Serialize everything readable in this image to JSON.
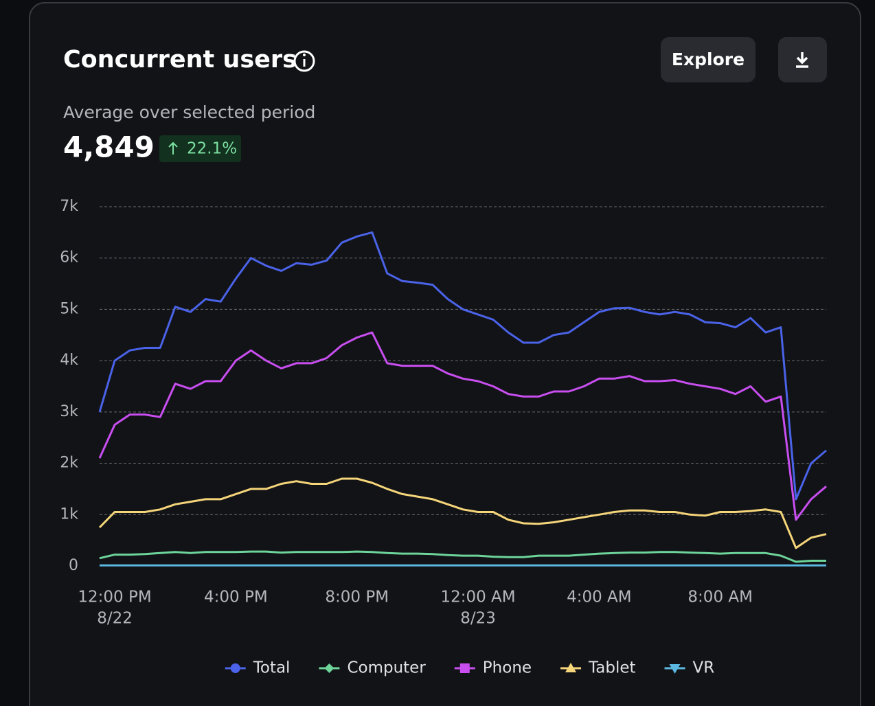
{
  "header": {
    "title": "Concurrent users",
    "button": "Explore",
    "subtitle": "Average over selected period",
    "value": "4,849",
    "change": "22.1%"
  },
  "chart_data": {
    "type": "line",
    "x": [
      "8/22 11:30 AM",
      "8/22 12:00 PM",
      "8/22 12:30 PM",
      "8/22 1:00 PM",
      "8/22 1:30 PM",
      "8/22 2:00 PM",
      "8/22 2:30 PM",
      "8/22 3:00 PM",
      "8/22 3:30 PM",
      "8/22 4:00 PM",
      "8/22 4:30 PM",
      "8/22 5:00 PM",
      "8/22 5:30 PM",
      "8/22 6:00 PM",
      "8/22 6:30 PM",
      "8/22 7:00 PM",
      "8/22 7:30 PM",
      "8/22 8:00 PM",
      "8/22 8:30 PM",
      "8/22 9:00 PM",
      "8/22 9:30 PM",
      "8/22 10:00 PM",
      "8/22 10:30 PM",
      "8/22 11:00 PM",
      "8/22 11:30 PM",
      "8/23 12:00 AM",
      "8/23 12:30 AM",
      "8/23 1:00 AM",
      "8/23 1:30 AM",
      "8/23 2:00 AM",
      "8/23 2:30 AM",
      "8/23 3:00 AM",
      "8/23 3:30 AM",
      "8/23 4:00 AM",
      "8/23 4:30 AM",
      "8/23 5:00 AM",
      "8/23 5:30 AM",
      "8/23 6:00 AM",
      "8/23 6:30 AM",
      "8/23 7:00 AM",
      "8/23 7:30 AM",
      "8/23 8:00 AM",
      "8/23 8:30 AM",
      "8/23 9:00 AM",
      "8/23 9:30 AM",
      "8/23 10:00 AM",
      "8/23 10:30 AM",
      "8/23 11:00 AM",
      "8/23 11:30 AM"
    ],
    "series": [
      {
        "name": "Total",
        "color": "#4a63e8",
        "marker": "circle",
        "values": [
          3000,
          4000,
          4200,
          4250,
          4250,
          5050,
          4950,
          5200,
          5150,
          5600,
          6000,
          5850,
          5750,
          5900,
          5870,
          5950,
          6300,
          6420,
          6500,
          5700,
          5550,
          5520,
          5480,
          5200,
          5000,
          4900,
          4800,
          4550,
          4350,
          4350,
          4500,
          4550,
          4750,
          4950,
          5020,
          5030,
          4950,
          4900,
          4950,
          4900,
          4750,
          4730,
          4650,
          4830,
          4550,
          4650,
          1300,
          2000,
          2250
        ]
      },
      {
        "name": "Computer",
        "color": "#6dd49a",
        "marker": "diamond",
        "values": [
          150,
          220,
          220,
          230,
          250,
          270,
          250,
          270,
          270,
          270,
          280,
          280,
          260,
          270,
          270,
          270,
          270,
          280,
          270,
          250,
          240,
          240,
          230,
          210,
          200,
          200,
          180,
          170,
          170,
          200,
          200,
          200,
          220,
          240,
          250,
          260,
          260,
          270,
          270,
          260,
          250,
          240,
          250,
          250,
          250,
          200,
          80,
          100,
          100
        ]
      },
      {
        "name": "Phone",
        "color": "#c84ef0",
        "marker": "square",
        "values": [
          2100,
          2750,
          2950,
          2950,
          2900,
          3550,
          3450,
          3600,
          3600,
          4000,
          4200,
          4000,
          3850,
          3950,
          3950,
          4050,
          4300,
          4450,
          4550,
          3950,
          3900,
          3900,
          3900,
          3750,
          3650,
          3600,
          3500,
          3350,
          3300,
          3300,
          3400,
          3400,
          3500,
          3650,
          3650,
          3700,
          3600,
          3600,
          3620,
          3550,
          3500,
          3450,
          3350,
          3500,
          3200,
          3300,
          900,
          1300,
          1550
        ]
      },
      {
        "name": "Tablet",
        "color": "#f5d57a",
        "marker": "triangle",
        "values": [
          750,
          1050,
          1050,
          1050,
          1100,
          1200,
          1250,
          1300,
          1300,
          1400,
          1500,
          1500,
          1600,
          1650,
          1600,
          1600,
          1700,
          1700,
          1620,
          1500,
          1400,
          1350,
          1300,
          1200,
          1100,
          1050,
          1050,
          900,
          830,
          820,
          850,
          900,
          950,
          1000,
          1050,
          1080,
          1080,
          1050,
          1050,
          1000,
          980,
          1050,
          1050,
          1070,
          1100,
          1050,
          350,
          550,
          620
        ]
      },
      {
        "name": "VR",
        "color": "#5bb8e0",
        "marker": "triangle-down",
        "values": [
          10,
          10,
          10,
          10,
          10,
          10,
          10,
          10,
          10,
          10,
          10,
          10,
          10,
          10,
          10,
          10,
          10,
          10,
          10,
          10,
          10,
          10,
          10,
          10,
          10,
          10,
          10,
          10,
          10,
          10,
          10,
          10,
          10,
          10,
          10,
          10,
          10,
          10,
          10,
          10,
          10,
          10,
          10,
          10,
          10,
          10,
          10,
          10,
          10
        ]
      }
    ],
    "xlim": [
      "8/22 11:30 AM",
      "8/23 11:30 AM"
    ],
    "xticks": [
      {
        "value": "8/22 12:00 PM",
        "label": [
          "12:00 PM",
          "8/22"
        ]
      },
      {
        "value": "8/22 4:00 PM",
        "label": "4:00 PM"
      },
      {
        "value": "8/22 8:00 PM",
        "label": "8:00 PM"
      },
      {
        "value": "8/23 12:00 AM",
        "label": [
          "12:00 AM",
          "8/23"
        ]
      },
      {
        "value": "8/23 4:00 AM",
        "label": "4:00 AM"
      },
      {
        "value": "8/23 8:00 AM",
        "label": "8:00 AM"
      }
    ],
    "ylim": [
      0,
      7000
    ],
    "yticks": [
      0,
      {
        "value": 1000,
        "label": "1k"
      },
      {
        "value": 2000,
        "label": "2k"
      },
      {
        "value": 3000,
        "label": "3k"
      },
      {
        "value": 4000,
        "label": "4k"
      },
      {
        "value": 5000,
        "label": "5k"
      },
      {
        "value": 6000,
        "label": "6k"
      },
      {
        "value": 7000,
        "label": "7k"
      }
    ],
    "grid": true,
    "legend": "bottom"
  }
}
